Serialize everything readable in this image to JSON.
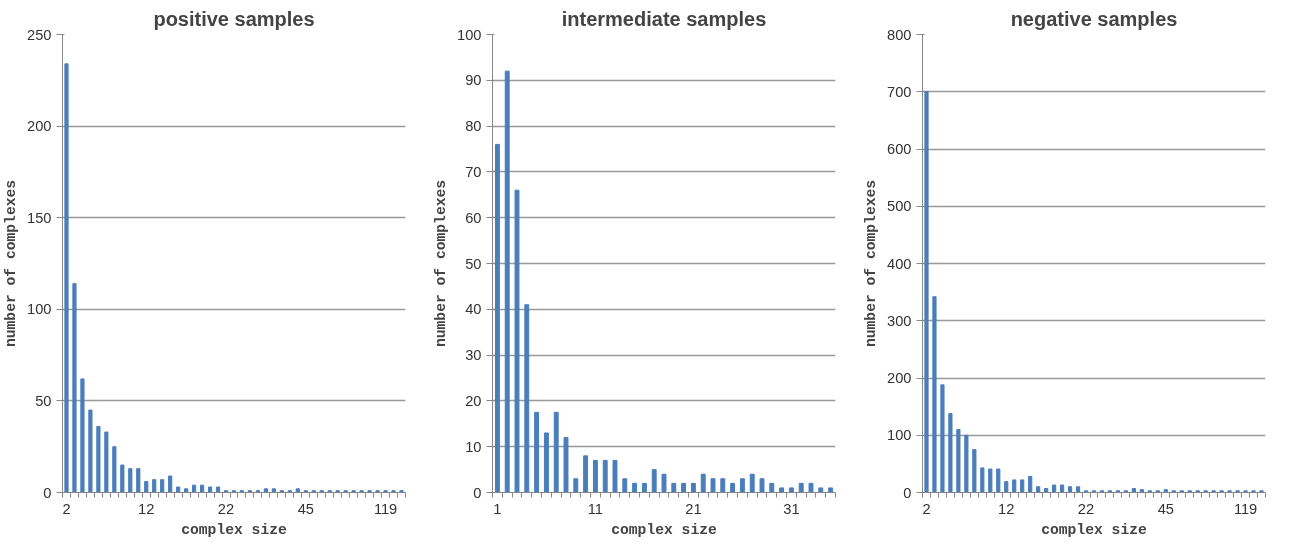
{
  "chart_data": [
    {
      "type": "bar",
      "title": "positive samples",
      "xlabel": "complex size",
      "ylabel": "number of complexes",
      "categories": [
        "2",
        null,
        null,
        null,
        null,
        null,
        null,
        null,
        null,
        null,
        "12",
        null,
        null,
        null,
        null,
        null,
        null,
        null,
        null,
        null,
        "22",
        null,
        null,
        null,
        null,
        null,
        null,
        null,
        null,
        null,
        "45",
        null,
        null,
        null,
        null,
        null,
        null,
        null,
        null,
        null,
        "119",
        null,
        null
      ],
      "color": "#4a7ebb",
      "values": [
        234,
        114,
        62,
        45,
        36,
        33,
        25,
        15,
        13,
        13,
        6,
        7,
        7,
        9,
        3,
        2,
        4,
        4,
        3,
        3,
        1,
        1,
        1,
        1,
        1,
        2,
        2,
        1,
        1,
        2,
        1,
        1,
        1,
        1,
        1,
        1,
        1,
        1,
        1,
        1,
        1,
        1,
        1
      ],
      "ylim": [
        0,
        250
      ],
      "yticks": [
        0,
        50,
        100,
        150,
        200,
        250
      ],
      "grid": "y"
    },
    {
      "type": "bar",
      "title": "intermediate samples",
      "xlabel": "complex size",
      "ylabel": "number of complexes",
      "categories": [
        "1",
        null,
        null,
        null,
        null,
        null,
        null,
        null,
        null,
        null,
        "11",
        null,
        null,
        null,
        null,
        null,
        null,
        null,
        null,
        null,
        "21",
        null,
        null,
        null,
        null,
        null,
        null,
        null,
        null,
        null,
        "31",
        null,
        null,
        null,
        null
      ],
      "color": "#4a7ebb",
      "values": [
        76,
        92,
        66,
        41,
        17.5,
        13,
        17.5,
        12,
        3,
        8,
        7,
        7,
        7,
        3,
        2,
        2,
        5,
        4,
        2,
        2,
        2,
        4,
        3,
        3,
        2,
        3,
        4,
        3,
        2,
        1,
        1,
        2,
        2,
        1,
        1
      ],
      "ylim": [
        0,
        100
      ],
      "yticks": [
        0,
        10,
        20,
        30,
        40,
        50,
        60,
        70,
        80,
        90,
        100
      ],
      "grid": "y"
    },
    {
      "type": "bar",
      "title": "negative samples",
      "xlabel": "complex size",
      "ylabel": "number of complexes",
      "categories": [
        "2",
        null,
        null,
        null,
        null,
        null,
        null,
        null,
        null,
        null,
        "12",
        null,
        null,
        null,
        null,
        null,
        null,
        null,
        null,
        null,
        "22",
        null,
        null,
        null,
        null,
        null,
        null,
        null,
        null,
        null,
        "45",
        null,
        null,
        null,
        null,
        null,
        null,
        null,
        null,
        null,
        "119",
        null,
        null
      ],
      "color": "#4a7ebb",
      "values": [
        700,
        342,
        188,
        138,
        110,
        100,
        75,
        43,
        41,
        41,
        19,
        22,
        22,
        28,
        10,
        7,
        13,
        13,
        10,
        10,
        3,
        3,
        3,
        3,
        3,
        3,
        7,
        5,
        3,
        3,
        5,
        3,
        3,
        3,
        3,
        3,
        3,
        3,
        3,
        3,
        3,
        3,
        3
      ],
      "ylim": [
        0,
        800
      ],
      "yticks": [
        0,
        100,
        200,
        300,
        400,
        500,
        600,
        700,
        800
      ],
      "grid": "y"
    }
  ]
}
